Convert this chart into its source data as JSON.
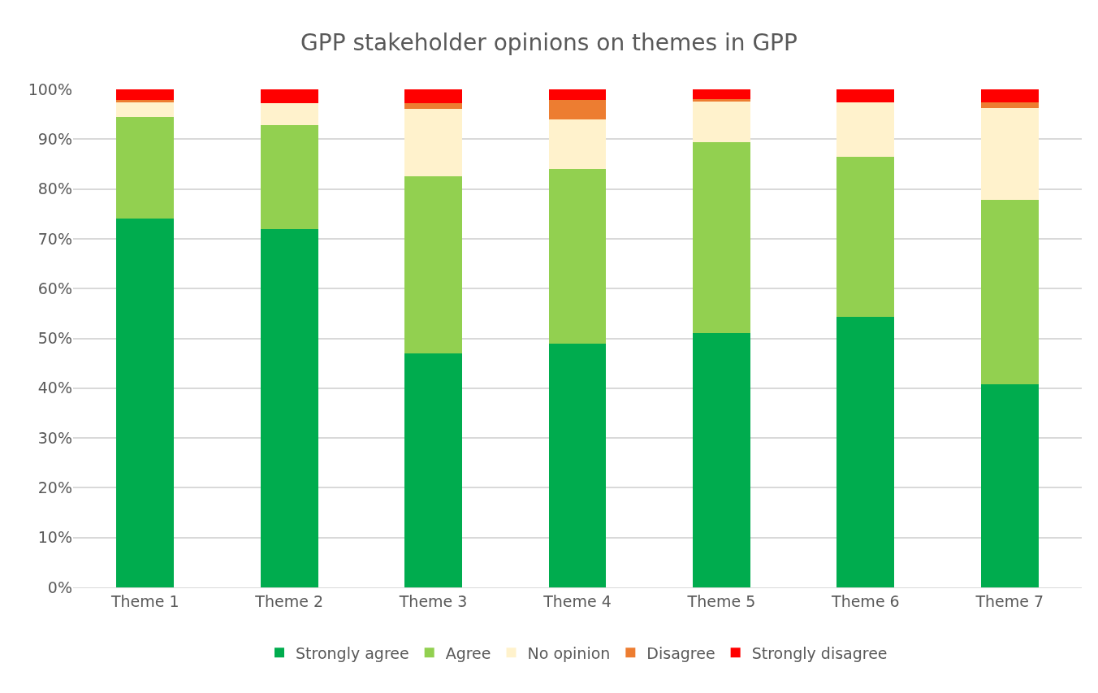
{
  "chart_data": {
    "type": "bar",
    "title": "GPP stakeholder opinions on themes in GPP",
    "stacked": true,
    "categories": [
      "Theme 1",
      "Theme 2",
      "Theme 3",
      "Theme 4",
      "Theme 5",
      "Theme 6",
      "Theme 7"
    ],
    "series": [
      {
        "name": "Strongly agree",
        "color": "#00ac4e",
        "values": [
          74,
          72,
          47,
          49,
          51,
          54.3,
          40.8
        ]
      },
      {
        "name": "Agree",
        "color": "#92d050",
        "values": [
          20.5,
          20.8,
          35.6,
          35,
          38.4,
          32.2,
          37
        ]
      },
      {
        "name": "No opinion",
        "color": "#fff2cc",
        "values": [
          3,
          4.5,
          13.5,
          10,
          8.1,
          10.9,
          18.4
        ]
      },
      {
        "name": "Disagree",
        "color": "#ed7d31",
        "values": [
          0.3,
          0,
          1.2,
          3.9,
          0.5,
          0,
          1.2
        ]
      },
      {
        "name": "Strongly disagree",
        "color": "#ff0000",
        "values": [
          2.2,
          2.7,
          2.7,
          2.1,
          2,
          2.6,
          2.6
        ]
      }
    ],
    "ylim": [
      0,
      100
    ],
    "yticks": [
      {
        "value": 0,
        "label": "0%"
      },
      {
        "value": 10,
        "label": "10%"
      },
      {
        "value": 20,
        "label": "20%"
      },
      {
        "value": 30,
        "label": "30%"
      },
      {
        "value": 40,
        "label": "40%"
      },
      {
        "value": 50,
        "label": "50%"
      },
      {
        "value": 60,
        "label": "60%"
      },
      {
        "value": 70,
        "label": "70%"
      },
      {
        "value": 80,
        "label": "80%"
      },
      {
        "value": 90,
        "label": "90%"
      },
      {
        "value": 100,
        "label": "100%"
      }
    ],
    "grid": "y",
    "legend": "bottom"
  }
}
